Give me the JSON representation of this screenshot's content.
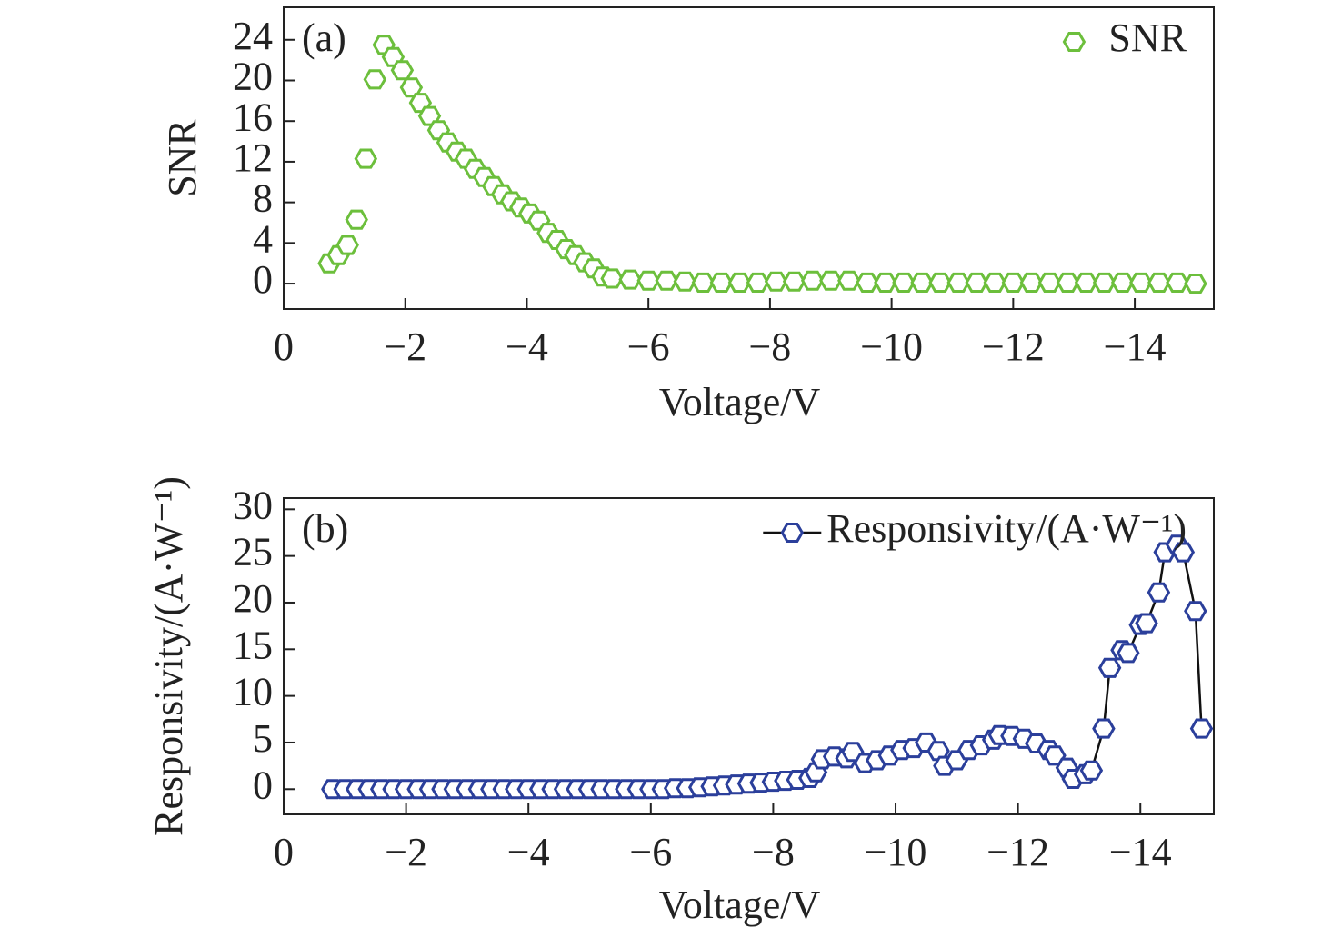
{
  "chart_data": [
    {
      "type": "scatter",
      "annotation": "(a)",
      "xlabel": "Voltage/V",
      "ylabel": "SNR",
      "legend": "upper right",
      "line": false,
      "xlim": [
        0,
        -15.3
      ],
      "ylim": [
        -2.5,
        27.2
      ],
      "xticks": [
        0,
        {
          "value": -2,
          "label": "−2"
        },
        {
          "value": -4,
          "label": "−4"
        },
        {
          "value": -6,
          "label": "−6"
        },
        {
          "value": -8,
          "label": "−8"
        },
        {
          "value": -10,
          "label": "−10"
        },
        {
          "value": -12,
          "label": "−12"
        },
        {
          "value": -14,
          "label": "−14"
        }
      ],
      "yticks": [
        0,
        4,
        8,
        12,
        16,
        20,
        24
      ],
      "x": [
        -0.75,
        -0.9,
        -1.05,
        -1.2,
        -1.35,
        -1.5,
        -1.65,
        -1.8,
        -1.95,
        -2.1,
        -2.25,
        -2.4,
        -2.55,
        -2.7,
        -2.85,
        -3.0,
        -3.15,
        -3.3,
        -3.45,
        -3.6,
        -3.75,
        -3.9,
        -4.05,
        -4.2,
        -4.35,
        -4.5,
        -4.65,
        -4.8,
        -4.95,
        -5.1,
        -5.25,
        -5.4,
        -5.7,
        -6.0,
        -6.3,
        -6.6,
        -6.9,
        -7.2,
        -7.5,
        -7.8,
        -8.1,
        -8.4,
        -8.7,
        -9.0,
        -9.3,
        -9.6,
        -9.9,
        -10.2,
        -10.5,
        -10.8,
        -11.1,
        -11.4,
        -11.7,
        -12.0,
        -12.3,
        -12.6,
        -12.9,
        -13.2,
        -13.5,
        -13.8,
        -14.1,
        -14.4,
        -14.7,
        -15.0
      ],
      "series": [
        {
          "name": "SNR",
          "color": "#6cbf3c",
          "values": [
            2.0,
            2.8,
            3.8,
            6.3,
            12.3,
            20.1,
            23.5,
            22.3,
            21.0,
            19.3,
            17.8,
            16.5,
            15.1,
            13.9,
            13.0,
            12.3,
            11.3,
            10.5,
            9.6,
            8.8,
            8.1,
            7.5,
            6.9,
            6.2,
            5.0,
            4.3,
            3.4,
            2.8,
            2.1,
            1.5,
            0.7,
            0.5,
            0.4,
            0.3,
            0.3,
            0.2,
            0.1,
            0.1,
            0.1,
            0.1,
            0.2,
            0.2,
            0.3,
            0.3,
            0.3,
            0.1,
            0.1,
            0.1,
            0.1,
            0.1,
            0.1,
            0.1,
            0.1,
            0.1,
            0.1,
            0.1,
            0.1,
            0.1,
            0.1,
            0.1,
            0.1,
            0.1,
            0.1,
            0
          ]
        }
      ]
    },
    {
      "type": "line",
      "annotation": "(b)",
      "xlabel": "Voltage/V",
      "ylabel": "Responsivity/(A·W⁻¹)",
      "legend": "upper right",
      "line": true,
      "line_color": "#111111",
      "xlim": [
        0,
        -15.2
      ],
      "ylim": [
        -2.7,
        31.2
      ],
      "xticks": [
        0,
        {
          "value": -2,
          "label": "−2"
        },
        {
          "value": -4,
          "label": "−4"
        },
        {
          "value": -6,
          "label": "−6"
        },
        {
          "value": -8,
          "label": "−8"
        },
        {
          "value": -10,
          "label": "−10"
        },
        {
          "value": -12,
          "label": "−12"
        },
        {
          "value": -14,
          "label": "−14"
        }
      ],
      "yticks": [
        0,
        5,
        10,
        15,
        20,
        25,
        30
      ],
      "x": [
        -0.8,
        -1.0,
        -1.2,
        -1.4,
        -1.6,
        -1.8,
        -2.0,
        -2.2,
        -2.4,
        -2.6,
        -2.8,
        -3.0,
        -3.2,
        -3.4,
        -3.6,
        -3.8,
        -4.0,
        -4.2,
        -4.4,
        -4.6,
        -4.8,
        -5.0,
        -5.2,
        -5.4,
        -5.6,
        -5.8,
        -6.0,
        -6.2,
        -6.4,
        -6.6,
        -6.8,
        -7.0,
        -7.2,
        -7.4,
        -7.6,
        -7.8,
        -8.0,
        -8.2,
        -8.4,
        -8.6,
        -8.7,
        -8.8,
        -9.0,
        -9.2,
        -9.3,
        -9.5,
        -9.7,
        -9.9,
        -10.1,
        -10.3,
        -10.5,
        -10.7,
        -10.8,
        -11.0,
        -11.2,
        -11.4,
        -11.6,
        -11.7,
        -11.9,
        -12.1,
        -12.3,
        -12.5,
        -12.6,
        -12.8,
        -12.9,
        -13.1,
        -13.2,
        -13.4,
        -13.5,
        -13.7,
        -13.8,
        -14.0,
        -14.1,
        -14.3,
        -14.4,
        -14.6,
        -14.7,
        -14.9,
        -15.0
      ],
      "series": [
        {
          "name": "Responsivity/(A·W⁻¹)",
          "color": "#2b3f9b",
          "values": [
            0,
            0,
            0,
            0,
            0,
            0,
            0,
            0,
            0,
            0,
            0,
            0,
            0,
            0,
            0,
            0,
            0,
            0,
            0,
            0,
            0,
            0,
            0,
            0,
            0,
            0,
            0,
            0,
            0.1,
            0.1,
            0.2,
            0.3,
            0.4,
            0.5,
            0.6,
            0.7,
            0.8,
            0.9,
            1.0,
            1.2,
            1.8,
            3.2,
            3.5,
            3.3,
            4.0,
            2.8,
            3.1,
            3.6,
            4.2,
            4.4,
            5.0,
            4.1,
            2.5,
            3.1,
            4.2,
            4.7,
            5.3,
            5.8,
            5.7,
            5.4,
            4.9,
            4.2,
            3.6,
            2.3,
            1.1,
            1.6,
            2.0,
            6.5,
            13.0,
            14.9,
            14.6,
            17.6,
            17.8,
            21.1,
            25.4,
            26.2,
            25.4,
            19.1,
            6.5
          ]
        }
      ]
    }
  ]
}
